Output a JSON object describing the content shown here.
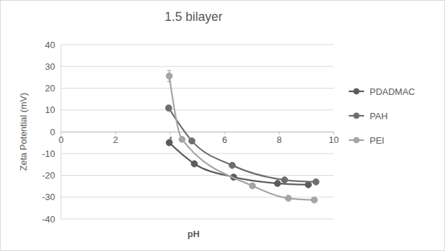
{
  "chart_data": {
    "type": "line",
    "title": "1.5 bilayer",
    "x_label": "pH",
    "y_label": "Zeta Potential (mV)",
    "xlim": [
      0,
      10
    ],
    "xticks": [
      0,
      2,
      4,
      6,
      8,
      10
    ],
    "ylim": [
      -40,
      40
    ],
    "yticks": [
      -40,
      -30,
      -20,
      -10,
      0,
      10,
      20,
      30,
      40
    ],
    "grid": true,
    "legend": "right",
    "marker": "circle",
    "line_style": "smooth",
    "series": [
      {
        "name": "PDADMAC",
        "color": "#5b5b5b",
        "x": [
          3.98,
          4.9,
          6.34,
          7.95,
          9.08
        ],
        "values": [
          -5,
          -14.7,
          -20.8,
          -23.7,
          -24.3
        ],
        "error": [
          1,
          null,
          null,
          null,
          null
        ]
      },
      {
        "name": "PAH",
        "color": "#6e6e6e",
        "x": [
          3.96,
          4.81,
          6.29,
          8.21,
          9.36
        ],
        "values": [
          10.9,
          -4.2,
          -15.4,
          -22.1,
          -23
        ],
        "error": [
          1.2,
          null,
          null,
          null,
          null
        ]
      },
      {
        "name": "PEI",
        "color": "#a5a5a5",
        "x": [
          3.98,
          4.45,
          7.03,
          8.35,
          9.3
        ],
        "values": [
          25.6,
          -3.5,
          -24.8,
          -30.5,
          -31.3
        ],
        "error": [
          2.5,
          null,
          null,
          null,
          null
        ]
      }
    ]
  }
}
